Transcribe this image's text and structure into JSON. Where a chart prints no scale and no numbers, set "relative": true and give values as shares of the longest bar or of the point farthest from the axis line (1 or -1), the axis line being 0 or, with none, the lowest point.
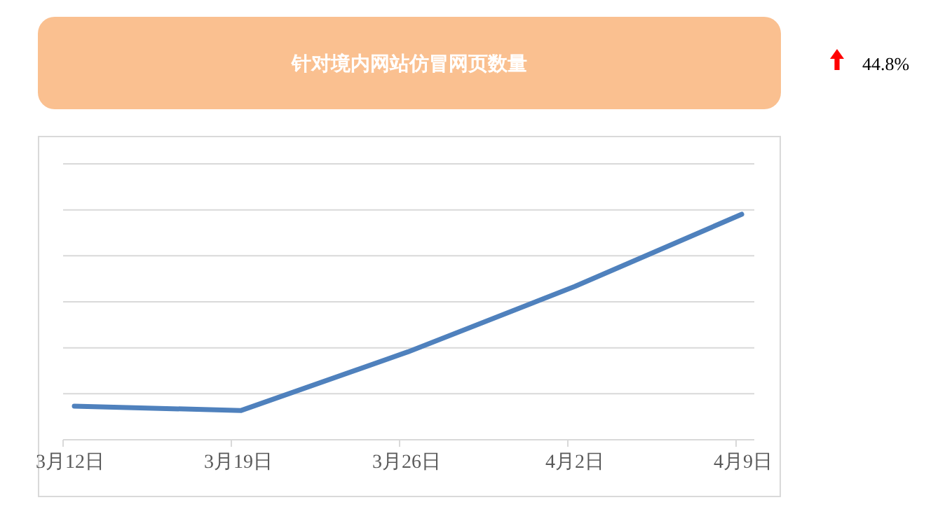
{
  "chart_data": {
    "type": "line",
    "title": "针对境内网站仿冒网页数量",
    "annotations": [
      "44.8%"
    ],
    "categories": [
      "3月12日",
      "3月19日",
      "3月26日",
      "4月2日",
      "4月9日"
    ],
    "series": [
      {
        "color": "#4f81bd",
        "values": [
          0.149,
          0.13,
          0.39,
          0.68,
          1
        ]
      }
    ],
    "relative": true,
    "grid": "y",
    "marker": "none",
    "line_style": "solid"
  }
}
